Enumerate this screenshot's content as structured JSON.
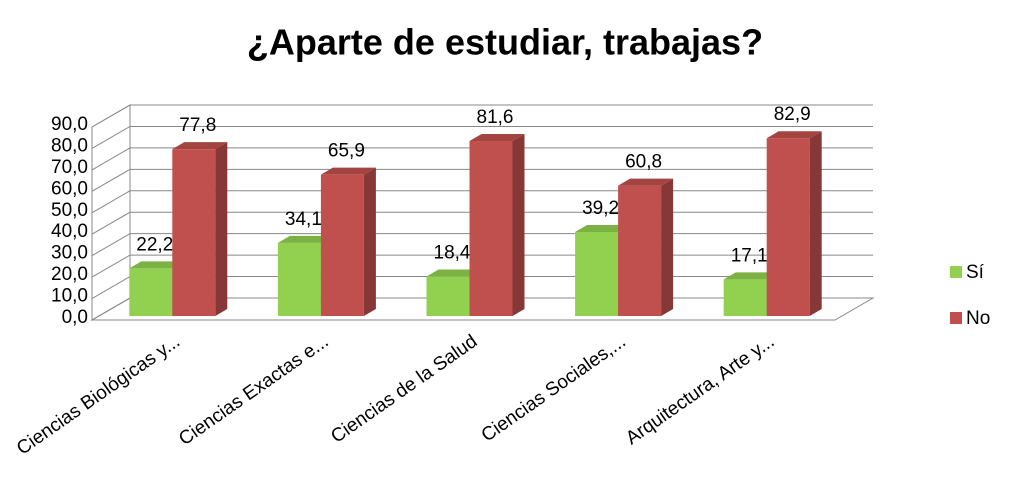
{
  "chart_data": {
    "type": "bar3d",
    "title": "¿Aparte de estudiar, trabajas?",
    "categories": [
      "Ciencias Biológicas y...",
      "Ciencias Exactas e...",
      "Ciencias de la Salud",
      "Ciencias Sociales,...",
      "Arquitectura, Arte y..."
    ],
    "series": [
      {
        "name": "Sí",
        "color": "#92d050",
        "values": [
          22.2,
          34.1,
          18.4,
          39.2,
          17.1
        ],
        "value_labels": [
          "22,2",
          "34,1",
          "18,4",
          "39,2",
          "17,1"
        ]
      },
      {
        "name": "No",
        "color": "#c0504d",
        "values": [
          77.8,
          65.9,
          81.6,
          60.8,
          82.9
        ],
        "value_labels": [
          "77,8",
          "65,9",
          "81,6",
          "60,8",
          "82,9"
        ]
      }
    ],
    "ylim": [
      0,
      90
    ],
    "yticks": [
      {
        "value": 0,
        "label": "0,0"
      },
      {
        "value": 10,
        "label": "10,0"
      },
      {
        "value": 20,
        "label": "20,0"
      },
      {
        "value": 30,
        "label": "30,0"
      },
      {
        "value": 40,
        "label": "40,0"
      },
      {
        "value": 50,
        "label": "50,0"
      },
      {
        "value": 60,
        "label": "60,0"
      },
      {
        "value": 70,
        "label": "70,0"
      },
      {
        "value": 80,
        "label": "80,0"
      },
      {
        "value": 90,
        "label": "90,0"
      }
    ],
    "grid": true,
    "legend": "right"
  }
}
